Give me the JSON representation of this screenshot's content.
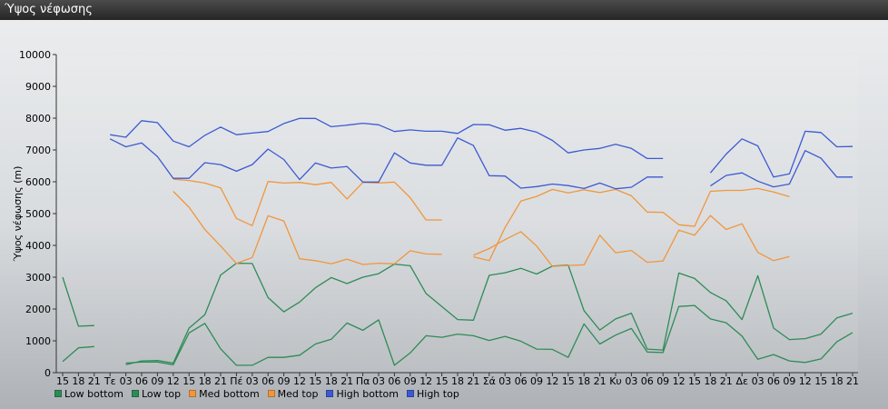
{
  "window": {
    "title": "Ύψος νέφωσης"
  },
  "chart_data": {
    "type": "line",
    "title": "",
    "xlabel": "",
    "ylabel": "Ύψος νέφωσης (m)",
    "ylim": [
      0,
      10000
    ],
    "yticks": [
      0,
      1000,
      2000,
      3000,
      4000,
      5000,
      6000,
      7000,
      8000,
      9000,
      10000
    ],
    "grid": false,
    "legend_position": "bottom-left",
    "categories": [
      "15",
      "18",
      "21",
      "Τε",
      "03",
      "06",
      "09",
      "12",
      "15",
      "18",
      "21",
      "Πέ",
      "03",
      "06",
      "09",
      "12",
      "15",
      "18",
      "21",
      "Πα",
      "03",
      "06",
      "09",
      "12",
      "15",
      "18",
      "21",
      "Σά",
      "03",
      "06",
      "09",
      "12",
      "15",
      "18",
      "21",
      "Κυ",
      "03",
      "06",
      "09",
      "12",
      "15",
      "18",
      "21",
      "Δε",
      "03",
      "06",
      "09",
      "12",
      "15",
      "18",
      "21"
    ],
    "series": [
      {
        "name": "Low bottom",
        "color": "#2e8b57",
        "values": [
          350,
          780,
          820,
          null,
          300,
          330,
          330,
          250,
          1250,
          1550,
          750,
          230,
          230,
          480,
          480,
          550,
          900,
          1050,
          1560,
          1330,
          1660,
          230,
          620,
          1160,
          1110,
          1210,
          1160,
          1010,
          1140,
          990,
          740,
          730,
          480,
          1530,
          900,
          1180,
          1390,
          650,
          630,
          2080,
          2110,
          1690,
          1570,
          1150,
          420,
          570,
          370,
          320,
          430,
          970,
          1260
        ]
      },
      {
        "name": "Low top",
        "color": "#2e8b57",
        "values": [
          3000,
          1460,
          1480,
          null,
          250,
          370,
          380,
          300,
          1400,
          1820,
          3070,
          3440,
          3430,
          2360,
          1910,
          2220,
          2670,
          2990,
          2800,
          3000,
          3110,
          3410,
          3360,
          2490,
          2080,
          1670,
          1650,
          3060,
          3140,
          3280,
          3100,
          3350,
          3380,
          1950,
          1340,
          1690,
          1870,
          740,
          710,
          3130,
          2960,
          2520,
          2260,
          1670,
          3050,
          1400,
          1040,
          1070,
          1210,
          1720,
          1870
        ]
      },
      {
        "name": "Med bottom",
        "color": "#f0963c",
        "values": [
          null,
          null,
          null,
          null,
          null,
          null,
          null,
          5700,
          5200,
          4500,
          3980,
          3430,
          3620,
          4930,
          4770,
          3580,
          3520,
          3420,
          3570,
          3400,
          3440,
          3420,
          3830,
          3730,
          3720,
          null,
          3690,
          3900,
          4180,
          4430,
          3980,
          3340,
          3370,
          3390,
          4320,
          3770,
          3840,
          3470,
          3510,
          4480,
          4320,
          4940,
          4500,
          4680,
          3780,
          3520,
          3650,
          null,
          null,
          null,
          null
        ]
      },
      {
        "name": "Med top",
        "color": "#f0963c",
        "values": [
          null,
          null,
          null,
          null,
          null,
          null,
          null,
          6080,
          6040,
          5960,
          5810,
          4850,
          4620,
          6010,
          5960,
          5980,
          5910,
          5980,
          5460,
          5980,
          5960,
          5990,
          5500,
          4800,
          4800,
          null,
          3640,
          3520,
          4560,
          5390,
          5540,
          5760,
          5650,
          5750,
          5660,
          5760,
          5560,
          5050,
          5040,
          4650,
          4600,
          5700,
          5730,
          5730,
          5790,
          5680,
          5530,
          null,
          null,
          null,
          null
        ]
      },
      {
        "name": "High bottom",
        "color": "#3c5ad2",
        "values": [
          null,
          null,
          null,
          7350,
          7100,
          7220,
          6790,
          6110,
          6110,
          6600,
          6540,
          6330,
          6540,
          7030,
          6700,
          6070,
          6590,
          6430,
          6480,
          5990,
          5990,
          6910,
          6590,
          6520,
          6520,
          7380,
          7140,
          6190,
          6180,
          5800,
          5850,
          5930,
          5880,
          5790,
          5960,
          5780,
          5830,
          6150,
          6150,
          null,
          null,
          5870,
          6200,
          6280,
          6020,
          5840,
          5930,
          6980,
          6740,
          6150,
          6150
        ]
      },
      {
        "name": "High top",
        "color": "#3c5ad2",
        "values": [
          null,
          null,
          null,
          7480,
          7400,
          7920,
          7860,
          7280,
          7100,
          7460,
          7720,
          7480,
          7530,
          7580,
          7830,
          7990,
          7990,
          7730,
          7780,
          7840,
          7790,
          7580,
          7630,
          7590,
          7590,
          7520,
          7800,
          7790,
          7620,
          7680,
          7560,
          7300,
          6910,
          7000,
          7050,
          7180,
          7050,
          6730,
          6730,
          null,
          null,
          6280,
          6870,
          7350,
          7130,
          6150,
          6250,
          7590,
          7550,
          7100,
          7110
        ]
      }
    ]
  }
}
